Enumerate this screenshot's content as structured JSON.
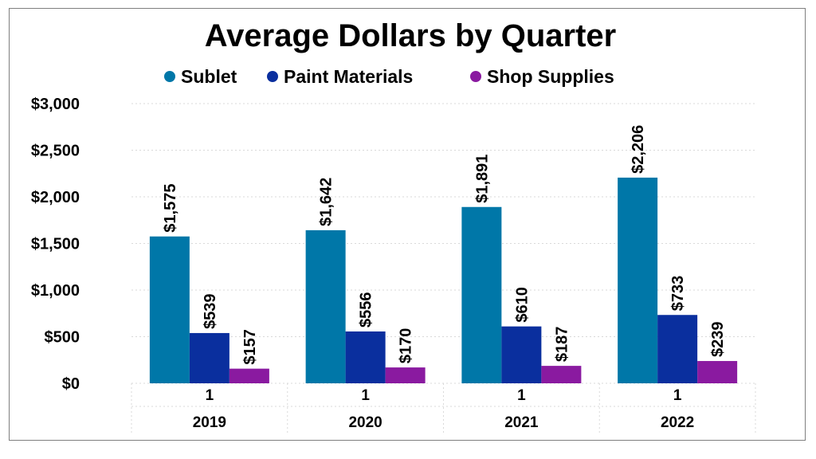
{
  "chart_data": {
    "type": "bar",
    "title": "Average Dollars by Quarter",
    "sub_categories": [
      "1",
      "1",
      "1",
      "1"
    ],
    "categories": [
      "2019",
      "2020",
      "2021",
      "2022"
    ],
    "series": [
      {
        "name": "Sublet",
        "color": "#0077a8",
        "values": [
          1575,
          1642,
          1891,
          2206
        ],
        "labels": [
          "$1,575",
          "$1,642",
          "$1,891",
          "$2,206"
        ]
      },
      {
        "name": "Paint Materials",
        "color": "#0a2f9e",
        "values": [
          539,
          556,
          610,
          733
        ],
        "labels": [
          "$539",
          "$556",
          "$610",
          "$733"
        ]
      },
      {
        "name": "Shop Supplies",
        "color": "#8a1aa0",
        "values": [
          157,
          170,
          187,
          239
        ],
        "labels": [
          "$157",
          "$170",
          "$187",
          "$239"
        ]
      }
    ],
    "ylim": [
      0,
      3000
    ],
    "yticks": [
      0,
      500,
      1000,
      1500,
      2000,
      2500,
      3000
    ],
    "ytick_labels": [
      "$0",
      "$500",
      "$1,000",
      "$1,500",
      "$2,000",
      "$2,500",
      "$3,000"
    ],
    "grid": true,
    "legend_position": "top"
  }
}
